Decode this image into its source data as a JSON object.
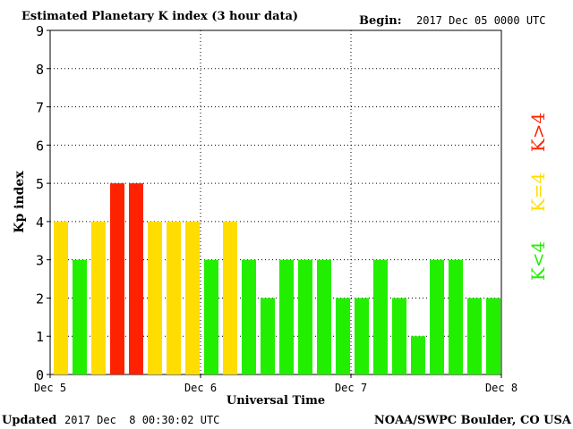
{
  "header": {
    "title": "Estimated Planetary K index (3 hour data)",
    "begin_label": "Begin:",
    "begin_value": "2017 Dec 05 0000 UTC"
  },
  "footer": {
    "updated_label": "Updated",
    "updated_value": "2017 Dec  8 00:30:02 UTC",
    "source": "NOAA/SWPC Boulder, CO USA"
  },
  "legend": {
    "high": {
      "label": "K>4",
      "color": "#ff2200"
    },
    "mid": {
      "label": "K=4",
      "color": "#ffdd00"
    },
    "low": {
      "label": "K<4",
      "color": "#22ee00"
    }
  },
  "chart_data": {
    "type": "bar",
    "title": "Estimated Planetary K index (3 hour data)",
    "xlabel": "Universal Time",
    "ylabel": "Kp index",
    "ylim": [
      0,
      9
    ],
    "yticks": [
      0,
      1,
      2,
      3,
      4,
      5,
      6,
      7,
      8,
      9
    ],
    "xticks": [
      "Dec 5",
      "Dec 6",
      "Dec 7",
      "Dec 8"
    ],
    "grid": true,
    "values": [
      4,
      3,
      4,
      5,
      5,
      4,
      4,
      4,
      3,
      4,
      3,
      2,
      3,
      3,
      3,
      2,
      2,
      3,
      2,
      1,
      3,
      3,
      2,
      2
    ]
  }
}
